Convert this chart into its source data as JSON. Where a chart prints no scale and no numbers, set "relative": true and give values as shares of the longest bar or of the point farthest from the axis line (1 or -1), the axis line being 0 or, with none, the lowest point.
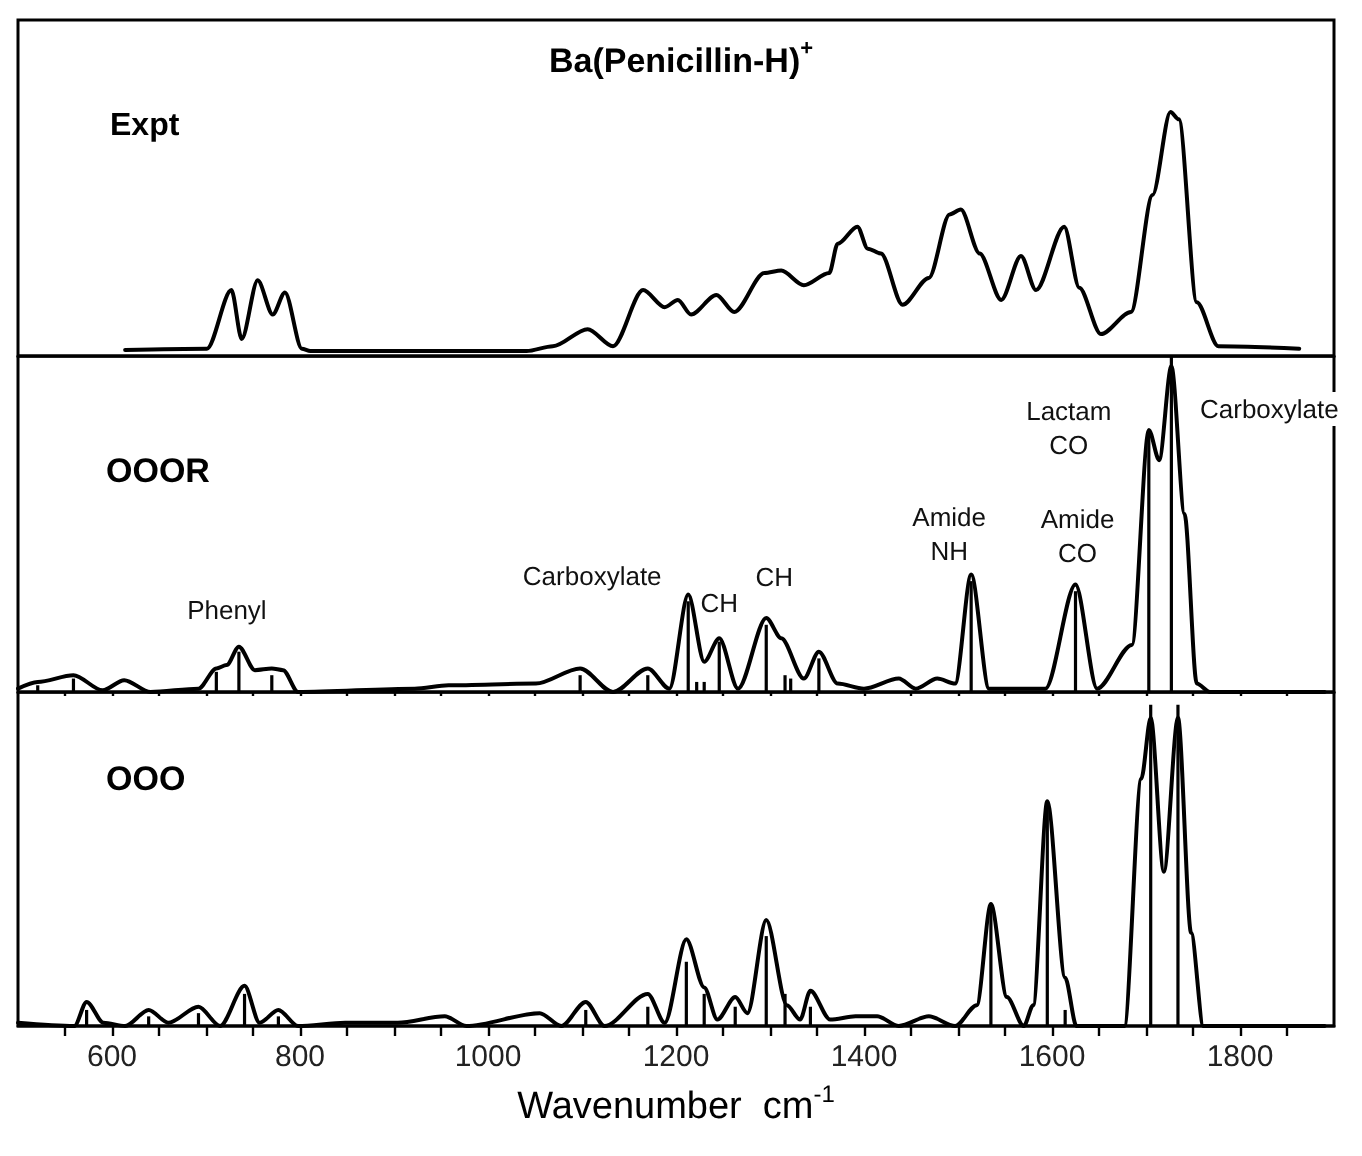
{
  "chart_data": [
    {
      "type": "line",
      "title": "Ba(Penicillin-H)$^{+}$",
      "subtitle": "Expt",
      "relative": true,
      "xlim": [
        500,
        1900
      ],
      "series": [
        {
          "color": "#000000",
          "x": [
            614,
            701,
            727,
            738,
            755,
            771,
            784,
            802,
            811,
            850,
            900,
            950,
            1000,
            1041,
            1069,
            1106,
            1133,
            1165,
            1188,
            1202,
            1216,
            1243,
            1262,
            1294,
            1312,
            1336,
            1363,
            1372,
            1393,
            1404,
            1418,
            1441,
            1469,
            1491,
            1503,
            1523,
            1546,
            1567,
            1583,
            1613,
            1629,
            1652,
            1684,
            1707,
            1726,
            1735,
            1754,
            1777,
            1863
          ],
          "values": [
            0.025,
            0.03,
            0.27,
            0.07,
            0.31,
            0.17,
            0.26,
            0.03,
            0.02,
            0.02,
            0.02,
            0.02,
            0.02,
            0.02,
            0.04,
            0.11,
            0.04,
            0.27,
            0.2,
            0.23,
            0.17,
            0.25,
            0.18,
            0.34,
            0.35,
            0.29,
            0.34,
            0.46,
            0.53,
            0.44,
            0.42,
            0.21,
            0.32,
            0.58,
            0.6,
            0.42,
            0.23,
            0.41,
            0.27,
            0.53,
            0.28,
            0.09,
            0.18,
            0.66,
            1.0,
            0.97,
            0.22,
            0.04,
            0.03
          ]
        }
      ]
    },
    {
      "type": "line",
      "title": "OOOR",
      "relative": true,
      "xlim": [
        500,
        1900
      ],
      "tick_labels": false,
      "xticks": [
        550,
        600,
        650,
        700,
        750,
        800,
        850,
        900,
        950,
        1000,
        1050,
        1100,
        1150,
        1200,
        1250,
        1300,
        1350,
        1400,
        1450,
        1500,
        1550,
        1600,
        1650,
        1700,
        1750,
        1800,
        1850
      ],
      "annotations": [
        {
          "text": "Phenyl",
          "x": 735,
          "y": 0.135
        },
        {
          "text": "Carboxylate",
          "x": 1213,
          "y": 0.29
        },
        {
          "text": "CH",
          "x": 1246,
          "y": 0.16
        },
        {
          "text": "CH",
          "x": 1296,
          "y": 0.22
        },
        {
          "text": "Amide NH",
          "x": 1514,
          "y": 0.35
        },
        {
          "text": "Amide CO",
          "x": 1625,
          "y": 0.32
        },
        {
          "text": "Lactam CO",
          "x": 1703,
          "y": 0.78
        },
        {
          "text": "Carboxylate",
          "x": 1727,
          "y": 0.97
        }
      ],
      "series": [
        {
          "color": "#000000",
          "x": [
            500,
            521,
            559,
            590,
            613,
            641,
            692,
            711,
            722,
            735,
            752,
            770,
            782,
            798,
            922,
            958,
            1051,
            1098,
            1133,
            1170,
            1193,
            1213,
            1230,
            1246,
            1266,
            1296,
            1312,
            1336,
            1352,
            1372,
            1400,
            1437,
            1455,
            1478,
            1497,
            1514,
            1533,
            1593,
            1625,
            1648,
            1685,
            1703,
            1714,
            1727,
            1741,
            1754,
            1768,
            1890
          ],
          "values": [
            0.01,
            0.03,
            0.05,
            0.005,
            0.035,
            0,
            0.01,
            0.07,
            0.08,
            0.135,
            0.065,
            0.07,
            0.065,
            0,
            0.01,
            0.02,
            0.025,
            0.07,
            0,
            0.07,
            0.01,
            0.29,
            0.09,
            0.16,
            0.01,
            0.22,
            0.16,
            0.04,
            0.12,
            0.025,
            0.01,
            0.04,
            0.01,
            0.04,
            0.025,
            0.35,
            0.01,
            0.01,
            0.32,
            0.01,
            0.14,
            0.78,
            0.69,
            0.97,
            0.53,
            0.025,
            0,
            0
          ]
        },
        {
          "type": "bar",
          "color": "#000000",
          "x": [
            521,
            559,
            711,
            735,
            770,
            1098,
            1170,
            1213,
            1222,
            1230,
            1246,
            1296,
            1316,
            1322,
            1352,
            1514,
            1625,
            1703,
            1727
          ],
          "values": [
            0.02,
            0.04,
            0.06,
            0.12,
            0.05,
            0.05,
            0.05,
            0.27,
            0.03,
            0.03,
            0.15,
            0.2,
            0.05,
            0.04,
            0.1,
            0.33,
            0.3,
            0.78,
            1.0
          ]
        }
      ]
    },
    {
      "type": "line",
      "title": "OOO",
      "relative": true,
      "xlim": [
        500,
        1900
      ],
      "xlabel": "Wavenumber  cm$^{-1}$",
      "xticks": [
        {
          "value": 550,
          "label": null
        },
        600,
        {
          "value": 650,
          "label": null
        },
        {
          "value": 700,
          "label": null
        },
        {
          "value": 750,
          "label": null
        },
        800,
        {
          "value": 850,
          "label": null
        },
        {
          "value": 900,
          "label": null
        },
        {
          "value": 950,
          "label": null
        },
        1000,
        {
          "value": 1050,
          "label": null
        },
        {
          "value": 1100,
          "label": null
        },
        {
          "value": 1150,
          "label": null
        },
        1200,
        {
          "value": 1250,
          "label": null
        },
        {
          "value": 1300,
          "label": null
        },
        {
          "value": 1350,
          "label": null
        },
        1400,
        {
          "value": 1450,
          "label": null
        },
        {
          "value": 1500,
          "label": null
        },
        {
          "value": 1550,
          "label": null
        },
        1600,
        {
          "value": 1650,
          "label": null
        },
        {
          "value": 1700,
          "label": null
        },
        {
          "value": 1750,
          "label": null
        },
        1800,
        {
          "value": 1850,
          "label": null
        }
      ],
      "series": [
        {
          "color": "#000000",
          "x": [
            500,
            560,
            573,
            591,
            614,
            639,
            660,
            692,
            715,
            741,
            757,
            777,
            798,
            848,
            904,
            954,
            977,
            1055,
            1078,
            1104,
            1124,
            1170,
            1188,
            1211,
            1230,
            1244,
            1263,
            1276,
            1296,
            1318,
            1332,
            1343,
            1364,
            1391,
            1414,
            1437,
            1469,
            1497,
            1520,
            1535,
            1552,
            1570,
            1580,
            1595,
            1614,
            1626,
            1677,
            1695,
            1705,
            1719,
            1734,
            1748,
            1761,
            1890
          ],
          "values": [
            0.01,
            0,
            0.075,
            0.01,
            0,
            0.05,
            0.01,
            0.06,
            0,
            0.125,
            0.01,
            0.05,
            0,
            0.01,
            0.01,
            0.03,
            0,
            0.04,
            0,
            0.075,
            0,
            0.1,
            0.01,
            0.27,
            0.12,
            0.02,
            0.09,
            0.04,
            0.33,
            0.065,
            0.02,
            0.11,
            0.02,
            0.03,
            0.03,
            0,
            0.03,
            0,
            0.065,
            0.38,
            0.09,
            0,
            0.065,
            0.7,
            0.15,
            0,
            0,
            0.77,
            0.96,
            0.48,
            0.96,
            0.29,
            0,
            0
          ]
        },
        {
          "type": "bar",
          "color": "#000000",
          "x": [
            573,
            639,
            692,
            741,
            777,
            1104,
            1170,
            1211,
            1230,
            1263,
            1296,
            1316,
            1343,
            1535,
            1595,
            1614,
            1705,
            1734
          ],
          "values": [
            0.05,
            0.03,
            0.04,
            0.1,
            0.03,
            0.05,
            0.06,
            0.2,
            0.1,
            0.06,
            0.28,
            0.1,
            0.06,
            0.38,
            0.7,
            0.05,
            1.0,
            1.0
          ]
        }
      ]
    }
  ]
}
